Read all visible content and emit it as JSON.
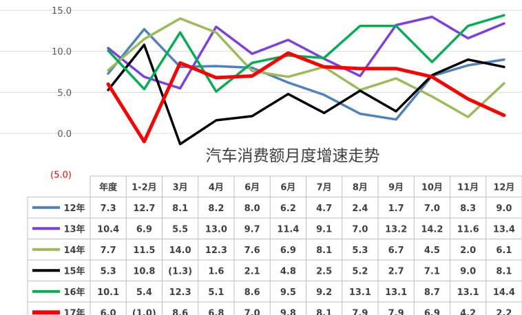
{
  "chart_data": {
    "type": "line",
    "title": "汽车消费额月度增速走势",
    "categories": [
      "年度",
      "1-2月",
      "3月",
      "4月",
      "6月",
      "6月",
      "7月",
      "8月",
      "9月",
      "10月",
      "11月",
      "12月"
    ],
    "ylim": [
      -5,
      15
    ],
    "yticks": [
      -5,
      0,
      5,
      10,
      15
    ],
    "ytick_labels": [
      "(5.0)",
      "0.0",
      "5.0",
      "10.0",
      "15.0"
    ],
    "grid": true,
    "legend": "table-left",
    "series": [
      {
        "name": "12年",
        "color": "#4f81bd",
        "values": [
          7.3,
          12.7,
          8.1,
          8.2,
          8.0,
          6.2,
          4.7,
          2.4,
          1.7,
          7.0,
          8.3,
          9.0
        ],
        "labels": [
          "7.3",
          "12.7",
          "8.1",
          "8.2",
          "8.0",
          "6.2",
          "4.7",
          "2.4",
          "1.7",
          "7.0",
          "8.3",
          "9.0"
        ]
      },
      {
        "name": "13年",
        "color": "#7b3fe4",
        "values": [
          10.4,
          6.9,
          5.5,
          13.0,
          9.7,
          11.4,
          9.1,
          7.0,
          13.2,
          14.2,
          11.6,
          13.4
        ],
        "labels": [
          "10.4",
          "6.9",
          "5.5",
          "13.0",
          "9.7",
          "11.4",
          "9.1",
          "7.0",
          "13.2",
          "14.2",
          "11.6",
          "13.4"
        ]
      },
      {
        "name": "14年",
        "color": "#9bbb59",
        "values": [
          7.7,
          11.5,
          14.0,
          12.3,
          7.6,
          6.9,
          8.1,
          5.3,
          6.7,
          4.5,
          2.0,
          6.1
        ],
        "labels": [
          "7.7",
          "11.5",
          "14.0",
          "12.3",
          "7.6",
          "6.9",
          "8.1",
          "5.3",
          "6.7",
          "4.5",
          "2.0",
          "6.1"
        ]
      },
      {
        "name": "15年",
        "color": "#000000",
        "values": [
          5.3,
          10.8,
          -1.3,
          1.6,
          2.1,
          4.8,
          2.5,
          5.2,
          2.7,
          7.1,
          9.0,
          8.1
        ],
        "labels": [
          "5.3",
          "10.8",
          "(1.3)",
          "1.6",
          "2.1",
          "4.8",
          "2.5",
          "5.2",
          "2.7",
          "7.1",
          "9.0",
          "8.1"
        ]
      },
      {
        "name": "16年",
        "color": "#00b050",
        "values": [
          10.1,
          5.4,
          12.3,
          5.1,
          8.6,
          9.5,
          9.2,
          13.1,
          13.1,
          8.7,
          13.1,
          14.4
        ],
        "labels": [
          "10.1",
          "5.4",
          "12.3",
          "5.1",
          "8.6",
          "9.5",
          "9.2",
          "13.1",
          "13.1",
          "8.7",
          "13.1",
          "14.4"
        ]
      },
      {
        "name": "17年",
        "color": "#ff0000",
        "values": [
          6.0,
          -1.0,
          8.6,
          6.8,
          7.0,
          9.8,
          8.1,
          7.9,
          7.9,
          6.9,
          4.2,
          2.2
        ],
        "labels": [
          "6.0",
          "(1.0)",
          "8.6",
          "6.8",
          "7.0",
          "9.8",
          "8.1",
          "7.9",
          "7.9",
          "6.9",
          "4.2",
          "2.2"
        ]
      }
    ]
  }
}
